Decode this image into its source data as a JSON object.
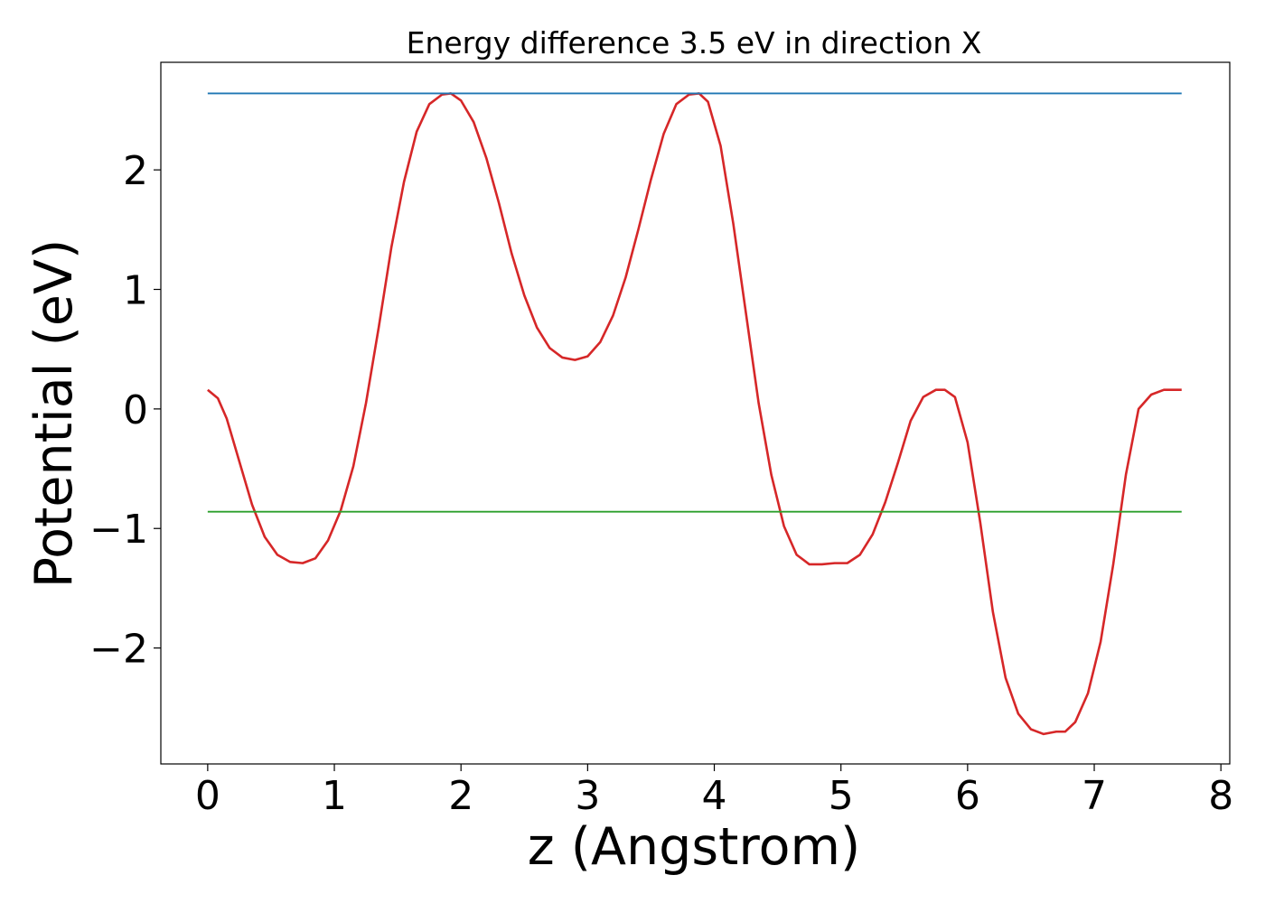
{
  "chart_data": {
    "type": "line",
    "title": "Energy difference 3.5 eV in direction X",
    "xlabel": "z (Angstrom)",
    "ylabel": "Potential (eV)",
    "xlim": [
      -0.37,
      8.07
    ],
    "ylim": [
      -2.97,
      2.9
    ],
    "xticks": [
      0,
      1,
      2,
      3,
      4,
      5,
      6,
      7,
      8
    ],
    "yticks": [
      -2,
      -1,
      0,
      1,
      2
    ],
    "xtick_labels": [
      "0",
      "1",
      "2",
      "3",
      "4",
      "5",
      "6",
      "7",
      "8"
    ],
    "ytick_labels": [
      "−2",
      "−1",
      "0",
      "1",
      "2"
    ],
    "grid": false,
    "series": [
      {
        "color": "#d62728",
        "x": [
          0.0,
          0.08,
          0.15,
          0.25,
          0.35,
          0.45,
          0.55,
          0.65,
          0.75,
          0.85,
          0.95,
          1.05,
          1.15,
          1.25,
          1.35,
          1.45,
          1.55,
          1.65,
          1.75,
          1.85,
          1.92,
          2.0,
          2.1,
          2.2,
          2.3,
          2.4,
          2.5,
          2.6,
          2.7,
          2.8,
          2.9,
          3.0,
          3.1,
          3.2,
          3.3,
          3.4,
          3.5,
          3.6,
          3.7,
          3.8,
          3.88,
          3.95,
          4.05,
          4.15,
          4.25,
          4.35,
          4.45,
          4.55,
          4.65,
          4.75,
          4.85,
          4.95,
          5.05,
          5.15,
          5.25,
          5.35,
          5.45,
          5.55,
          5.65,
          5.75,
          5.82,
          5.9,
          6.0,
          6.1,
          6.2,
          6.3,
          6.4,
          6.5,
          6.6,
          6.7,
          6.77,
          6.85,
          6.95,
          7.05,
          7.15,
          7.25,
          7.35,
          7.45,
          7.55,
          7.62,
          7.69
        ],
        "y": [
          0.16,
          0.09,
          -0.08,
          -0.44,
          -0.8,
          -1.07,
          -1.22,
          -1.28,
          -1.29,
          -1.25,
          -1.1,
          -0.85,
          -0.48,
          0.05,
          0.68,
          1.35,
          1.9,
          2.32,
          2.55,
          2.63,
          2.64,
          2.58,
          2.4,
          2.1,
          1.72,
          1.3,
          0.95,
          0.68,
          0.51,
          0.43,
          0.41,
          0.44,
          0.56,
          0.78,
          1.1,
          1.5,
          1.92,
          2.3,
          2.55,
          2.63,
          2.64,
          2.57,
          2.2,
          1.55,
          0.8,
          0.05,
          -0.55,
          -0.98,
          -1.22,
          -1.3,
          -1.3,
          -1.29,
          -1.29,
          -1.22,
          -1.05,
          -0.78,
          -0.45,
          -0.1,
          0.1,
          0.16,
          0.16,
          0.1,
          -0.28,
          -0.95,
          -1.7,
          -2.25,
          -2.55,
          -2.68,
          -2.72,
          -2.7,
          -2.7,
          -2.62,
          -2.38,
          -1.95,
          -1.3,
          -0.55,
          0.0,
          0.12,
          0.16,
          0.16,
          0.16
        ]
      },
      {
        "color": "#1f77b4",
        "x": [
          0.0,
          7.69
        ],
        "y": [
          2.64,
          2.64
        ]
      },
      {
        "color": "#2ca02c",
        "x": [
          0.0,
          7.69
        ],
        "y": [
          -0.86,
          -0.86
        ]
      }
    ]
  }
}
